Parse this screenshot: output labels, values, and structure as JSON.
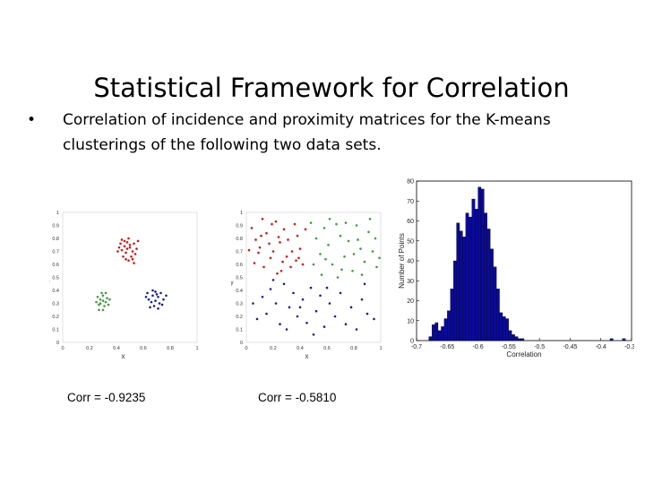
{
  "slide": {
    "title": "Statistical Framework for Correlation",
    "bullet_marker": "•",
    "bullet_text": "Correlation of incidence and proximity matrices for the K-means clusterings of the following two data sets."
  },
  "scatter_colors": {
    "red": "#d11414",
    "blue": "#1a1a9a",
    "green": "#3c9c3c"
  },
  "hist_color": "#0a0a9a",
  "captions": {
    "left": "Corr = -0.9235",
    "right": "Corr = -0.5810"
  },
  "chart_data": [
    {
      "type": "scatter",
      "xlabel": "x",
      "ylabel": "y",
      "xlim": [
        0,
        1
      ],
      "ylim": [
        0,
        1
      ],
      "xticks": [
        "0",
        "0.2",
        "0.4",
        "0.6",
        "0.8",
        "1"
      ],
      "yticks": [
        "0",
        "0.1",
        "0.2",
        "0.3",
        "0.4",
        "0.5",
        "0.6",
        "0.7",
        "0.8",
        "0.9",
        "1"
      ],
      "series": [
        {
          "color": "red",
          "points": [
            [
              0.43,
              0.76
            ],
            [
              0.46,
              0.78
            ],
            [
              0.48,
              0.72
            ],
            [
              0.5,
              0.75
            ],
            [
              0.52,
              0.7
            ],
            [
              0.47,
              0.69
            ],
            [
              0.49,
              0.8
            ],
            [
              0.53,
              0.76
            ],
            [
              0.55,
              0.72
            ],
            [
              0.44,
              0.71
            ],
            [
              0.42,
              0.73
            ],
            [
              0.51,
              0.66
            ],
            [
              0.47,
              0.64
            ],
            [
              0.49,
              0.63
            ],
            [
              0.53,
              0.61
            ],
            [
              0.45,
              0.66
            ],
            [
              0.56,
              0.78
            ],
            [
              0.5,
              0.73
            ],
            [
              0.48,
              0.77
            ],
            [
              0.52,
              0.64
            ],
            [
              0.46,
              0.74
            ],
            [
              0.54,
              0.68
            ],
            [
              0.41,
              0.7
            ],
            [
              0.44,
              0.79
            ]
          ]
        },
        {
          "color": "blue",
          "points": [
            [
              0.63,
              0.38
            ],
            [
              0.67,
              0.36
            ],
            [
              0.71,
              0.35
            ],
            [
              0.73,
              0.38
            ],
            [
              0.69,
              0.32
            ],
            [
              0.66,
              0.31
            ],
            [
              0.72,
              0.3
            ],
            [
              0.64,
              0.33
            ],
            [
              0.7,
              0.37
            ],
            [
              0.75,
              0.33
            ],
            [
              0.62,
              0.35
            ],
            [
              0.68,
              0.28
            ],
            [
              0.74,
              0.29
            ],
            [
              0.67,
              0.4
            ],
            [
              0.71,
              0.26
            ],
            [
              0.65,
              0.27
            ],
            [
              0.77,
              0.36
            ],
            [
              0.69,
              0.39
            ]
          ]
        },
        {
          "color": "green",
          "points": [
            [
              0.26,
              0.35
            ],
            [
              0.28,
              0.33
            ],
            [
              0.3,
              0.36
            ],
            [
              0.32,
              0.31
            ],
            [
              0.27,
              0.29
            ],
            [
              0.31,
              0.28
            ],
            [
              0.33,
              0.34
            ],
            [
              0.29,
              0.38
            ],
            [
              0.25,
              0.31
            ],
            [
              0.34,
              0.29
            ],
            [
              0.3,
              0.25
            ],
            [
              0.27,
              0.25
            ],
            [
              0.32,
              0.38
            ],
            [
              0.28,
              0.3
            ],
            [
              0.35,
              0.33
            ],
            [
              0.3,
              0.32
            ]
          ]
        }
      ]
    },
    {
      "type": "scatter",
      "xlabel": "x",
      "ylabel": "y",
      "xlim": [
        0,
        1
      ],
      "ylim": [
        0,
        1
      ],
      "xticks": [
        "0",
        "0.2",
        "0.4",
        "0.6",
        "0.8",
        "1"
      ],
      "yticks": [
        "0",
        "0.1",
        "0.2",
        "0.3",
        "0.4",
        "0.5",
        "0.6",
        "0.7",
        "0.8",
        "0.9",
        "1"
      ],
      "series": [
        {
          "color": "red",
          "points": [
            [
              0.04,
              0.88
            ],
            [
              0.07,
              0.79
            ],
            [
              0.1,
              0.73
            ],
            [
              0.12,
              0.95
            ],
            [
              0.15,
              0.84
            ],
            [
              0.18,
              0.65
            ],
            [
              0.22,
              0.93
            ],
            [
              0.25,
              0.77
            ],
            [
              0.28,
              0.87
            ],
            [
              0.3,
              0.66
            ],
            [
              0.33,
              0.58
            ],
            [
              0.36,
              0.91
            ],
            [
              0.38,
              0.82
            ],
            [
              0.4,
              0.72
            ],
            [
              0.06,
              0.61
            ],
            [
              0.09,
              0.69
            ],
            [
              0.13,
              0.58
            ],
            [
              0.17,
              0.76
            ],
            [
              0.2,
              0.7
            ],
            [
              0.23,
              0.53
            ],
            [
              0.27,
              0.62
            ],
            [
              0.31,
              0.79
            ],
            [
              0.34,
              0.7
            ],
            [
              0.37,
              0.63
            ],
            [
              0.42,
              0.6
            ],
            [
              0.44,
              0.87
            ],
            [
              0.02,
              0.71
            ],
            [
              0.19,
              0.91
            ],
            [
              0.26,
              0.55
            ],
            [
              0.39,
              0.65
            ],
            [
              0.11,
              0.82
            ],
            [
              0.24,
              0.81
            ]
          ]
        },
        {
          "color": "blue",
          "points": [
            [
              0.08,
              0.18
            ],
            [
              0.12,
              0.35
            ],
            [
              0.15,
              0.22
            ],
            [
              0.18,
              0.41
            ],
            [
              0.22,
              0.3
            ],
            [
              0.25,
              0.14
            ],
            [
              0.28,
              0.45
            ],
            [
              0.32,
              0.27
            ],
            [
              0.35,
              0.38
            ],
            [
              0.38,
              0.2
            ],
            [
              0.42,
              0.33
            ],
            [
              0.45,
              0.15
            ],
            [
              0.48,
              0.42
            ],
            [
              0.52,
              0.24
            ],
            [
              0.55,
              0.36
            ],
            [
              0.58,
              0.12
            ],
            [
              0.62,
              0.3
            ],
            [
              0.66,
              0.2
            ],
            [
              0.7,
              0.38
            ],
            [
              0.74,
              0.14
            ],
            [
              0.78,
              0.27
            ],
            [
              0.82,
              0.1
            ],
            [
              0.86,
              0.33
            ],
            [
              0.9,
              0.22
            ],
            [
              0.05,
              0.3
            ],
            [
              0.3,
              0.1
            ],
            [
              0.6,
              0.42
            ],
            [
              0.95,
              0.18
            ],
            [
              0.4,
              0.27
            ],
            [
              0.2,
              0.48
            ],
            [
              0.5,
              0.06
            ],
            [
              0.88,
              0.45
            ]
          ]
        },
        {
          "color": "green",
          "points": [
            [
              0.48,
              0.92
            ],
            [
              0.52,
              0.8
            ],
            [
              0.55,
              0.68
            ],
            [
              0.58,
              0.88
            ],
            [
              0.61,
              0.75
            ],
            [
              0.64,
              0.6
            ],
            [
              0.67,
              0.91
            ],
            [
              0.7,
              0.82
            ],
            [
              0.73,
              0.66
            ],
            [
              0.76,
              0.78
            ],
            [
              0.79,
              0.55
            ],
            [
              0.82,
              0.9
            ],
            [
              0.85,
              0.72
            ],
            [
              0.88,
              0.62
            ],
            [
              0.91,
              0.85
            ],
            [
              0.94,
              0.7
            ],
            [
              0.97,
              0.58
            ],
            [
              0.5,
              0.6
            ],
            [
              0.56,
              0.52
            ],
            [
              0.62,
              0.95
            ],
            [
              0.68,
              0.5
            ],
            [
              0.74,
              0.92
            ],
            [
              0.8,
              0.68
            ],
            [
              0.86,
              0.52
            ],
            [
              0.92,
              0.95
            ],
            [
              0.96,
              0.8
            ],
            [
              0.59,
              0.64
            ],
            [
              0.71,
              0.56
            ],
            [
              0.83,
              0.79
            ],
            [
              0.99,
              0.65
            ]
          ]
        }
      ]
    },
    {
      "type": "bar",
      "xlabel": "Correlation",
      "ylabel": "Number of Points",
      "xlim": [
        -0.7,
        -0.35
      ],
      "ylim": [
        0,
        80
      ],
      "xticks": [
        "-0.7",
        "-0.65",
        "-0.6",
        "-0.55",
        "-0.5",
        "-0.45",
        "-0.4",
        "-0.35"
      ],
      "yticks": [
        "0",
        "10",
        "20",
        "30",
        "40",
        "50",
        "60",
        "70",
        "80"
      ],
      "bin_start": -0.68,
      "bin_width": 0.005,
      "values": [
        2,
        8,
        9,
        5,
        7,
        11,
        15,
        26,
        40,
        59,
        55,
        52,
        64,
        62,
        71,
        66,
        77,
        76,
        64,
        56,
        46,
        37,
        26,
        14,
        12,
        11,
        5,
        3,
        2,
        1,
        1,
        0,
        0,
        0,
        0,
        0,
        0,
        0,
        0,
        0,
        0,
        0,
        0,
        0,
        0,
        0,
        0,
        0,
        0,
        0,
        0,
        0,
        0,
        0,
        0,
        0,
        0,
        0,
        0,
        1,
        0,
        0,
        0,
        1
      ]
    }
  ]
}
